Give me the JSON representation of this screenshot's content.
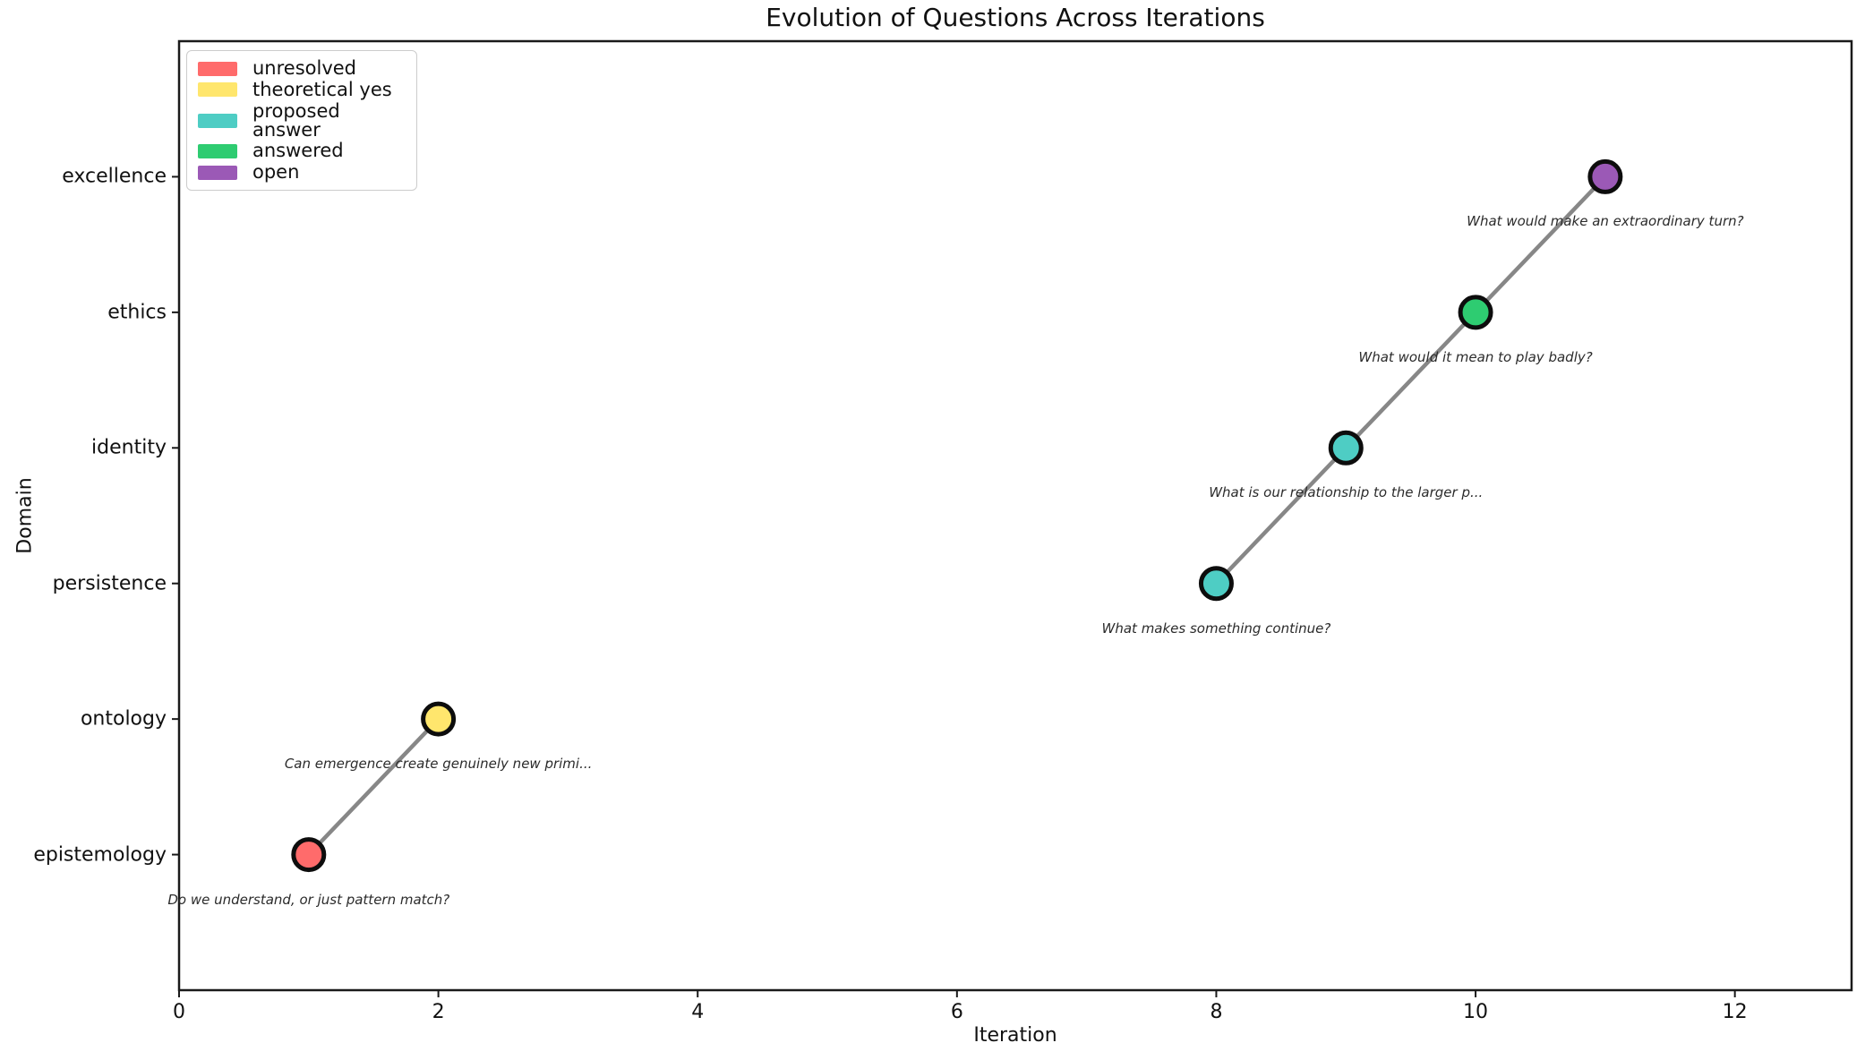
{
  "chart_data": {
    "type": "scatter",
    "title": "Evolution of Questions Across Iterations",
    "xlabel": "Iteration",
    "ylabel": "Domain",
    "xlim": [
      0,
      12.9
    ],
    "ylim": [
      -1,
      6
    ],
    "x_ticks": [
      0,
      2,
      4,
      6,
      8,
      10,
      12
    ],
    "y_categories": [
      "epistemology",
      "ontology",
      "persistence",
      "identity",
      "ethics",
      "excellence"
    ],
    "grid": false,
    "legend_position": "upper left",
    "frame_color": "#1a1a1a",
    "line_color": "#878787",
    "marker_edge_color": "#0d0d0d",
    "annotation_color": "#2b2b2b",
    "status_colors": {
      "unresolved": "#FF6B6B",
      "theoretical yes": "#FFE66D",
      "proposed answer": "#4ECDC4",
      "answered": "#2ECC71",
      "open": "#9B59B6"
    },
    "legend": [
      {
        "label": "unresolved",
        "color": "#FF6B6B"
      },
      {
        "label": "theoretical yes",
        "color": "#FFE66D"
      },
      {
        "label": "proposed answer",
        "color": "#4ECDC4"
      },
      {
        "label": "answered",
        "color": "#2ECC71"
      },
      {
        "label": "open",
        "color": "#9B59B6"
      }
    ],
    "points": [
      {
        "iteration": 1,
        "domain": "epistemology",
        "domain_index": 0,
        "status": "unresolved",
        "annotation": "Do we understand, or just pattern match?"
      },
      {
        "iteration": 2,
        "domain": "ontology",
        "domain_index": 1,
        "status": "theoretical yes",
        "annotation": "Can emergence create genuinely new primi..."
      },
      {
        "iteration": 8,
        "domain": "persistence",
        "domain_index": 2,
        "status": "proposed answer",
        "annotation": "What makes something continue?"
      },
      {
        "iteration": 9,
        "domain": "identity",
        "domain_index": 3,
        "status": "proposed answer",
        "annotation": "What is our relationship to the larger p..."
      },
      {
        "iteration": 10,
        "domain": "ethics",
        "domain_index": 4,
        "status": "answered",
        "annotation": "What would it mean to play badly?"
      },
      {
        "iteration": 11,
        "domain": "excellence",
        "domain_index": 5,
        "status": "open",
        "annotation": "What would make an extraordinary turn?"
      }
    ],
    "line_segments": [
      [
        0,
        1
      ],
      [
        2,
        3,
        4,
        5
      ]
    ]
  }
}
